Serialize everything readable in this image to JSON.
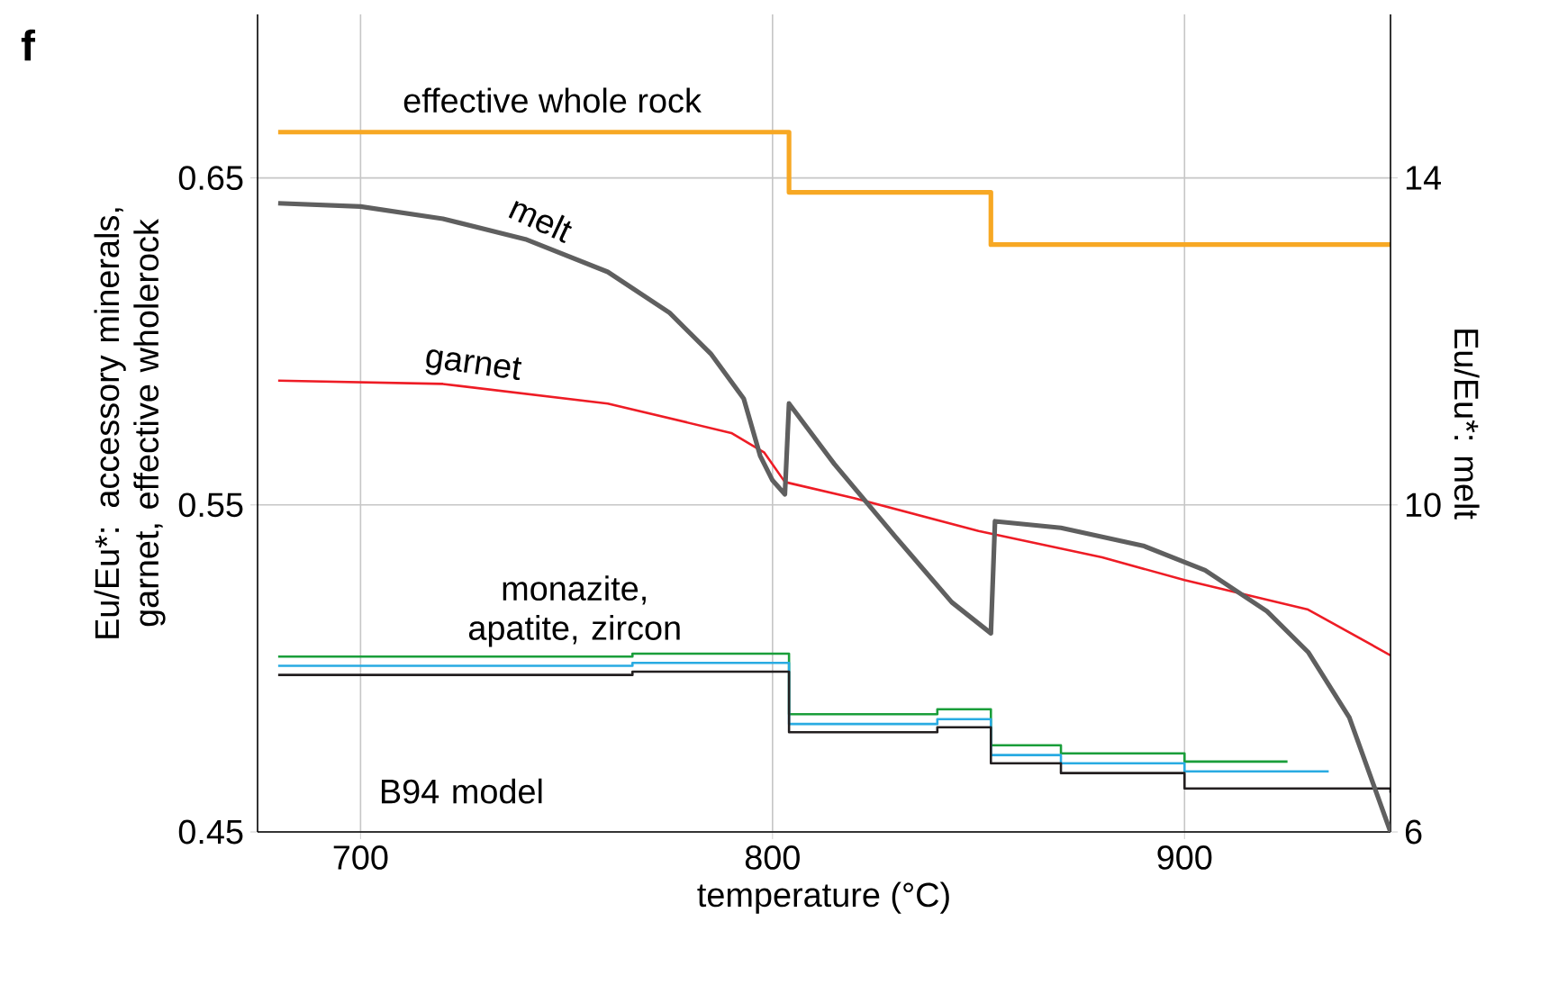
{
  "chart_data": {
    "type": "line",
    "title": "f",
    "xlabel": "temperature (°C)",
    "ylabel": "Eu/Eu*: accessory minerals, garnet, effective wholerock",
    "y2label": "Eu/Eu*: melt",
    "xlim": [
      675,
      950
    ],
    "xticks": [
      700,
      800,
      900
    ],
    "ylim": [
      0.45,
      0.7
    ],
    "yticks": [
      0.45,
      0.55,
      0.65
    ],
    "y2lim": [
      6,
      16
    ],
    "y2ticks": [
      6,
      10,
      14
    ],
    "grid": true,
    "series": [
      {
        "name": "effective whole rock",
        "type": "step",
        "color": "#f7a824",
        "x": [
          680,
          804,
          853,
          950
        ],
        "values": [
          0.664,
          0.6456,
          0.6296,
          0.6296
        ]
      },
      {
        "name": "melt",
        "axis": "y2",
        "color": "#5f5f5f",
        "x": [
          680,
          700,
          720,
          740,
          760,
          775,
          785,
          793,
          797,
          800,
          803,
          804,
          815,
          830,
          843.5,
          853,
          854,
          870,
          890,
          905,
          920,
          930,
          940,
          950
        ],
        "values": [
          13.69,
          13.65,
          13.5,
          13.25,
          12.85,
          12.35,
          11.85,
          11.3,
          10.6,
          10.3,
          10.13,
          11.24,
          10.5,
          9.6,
          8.81,
          8.43,
          9.8,
          9.72,
          9.5,
          9.2,
          8.7,
          8.2,
          7.4,
          6
        ]
      },
      {
        "name": "garnet",
        "color": "#ee1c25",
        "x": [
          680,
          720,
          760,
          790,
          798,
          803,
          820,
          850,
          880,
          900,
          930,
          950
        ],
        "values": [
          0.588,
          0.587,
          0.581,
          0.572,
          0.566,
          0.557,
          0.552,
          0.542,
          0.534,
          0.527,
          0.518,
          0.504
        ]
      },
      {
        "type": "step",
        "color": "#1a9e3a",
        "x": [
          680,
          766,
          804,
          840,
          853,
          870,
          900,
          925
        ],
        "values": [
          0.5036,
          0.5045,
          0.486,
          0.4875,
          0.4765,
          0.474,
          0.4715,
          0.4715
        ]
      },
      {
        "type": "step",
        "color": "#29abe2",
        "x": [
          680,
          766,
          804,
          840,
          853,
          870,
          900,
          935
        ],
        "values": [
          0.5008,
          0.5017,
          0.483,
          0.4845,
          0.4735,
          0.471,
          0.4685,
          0.4685
        ]
      },
      {
        "type": "step",
        "color": "#231f20",
        "x": [
          680,
          766,
          804,
          840,
          853,
          870,
          900,
          950
        ],
        "values": [
          0.498,
          0.499,
          0.4805,
          0.482,
          0.471,
          0.468,
          0.4633,
          0.462
        ]
      }
    ],
    "annotations": [
      "monazite, apatite, zircon",
      "B94 model"
    ]
  }
}
